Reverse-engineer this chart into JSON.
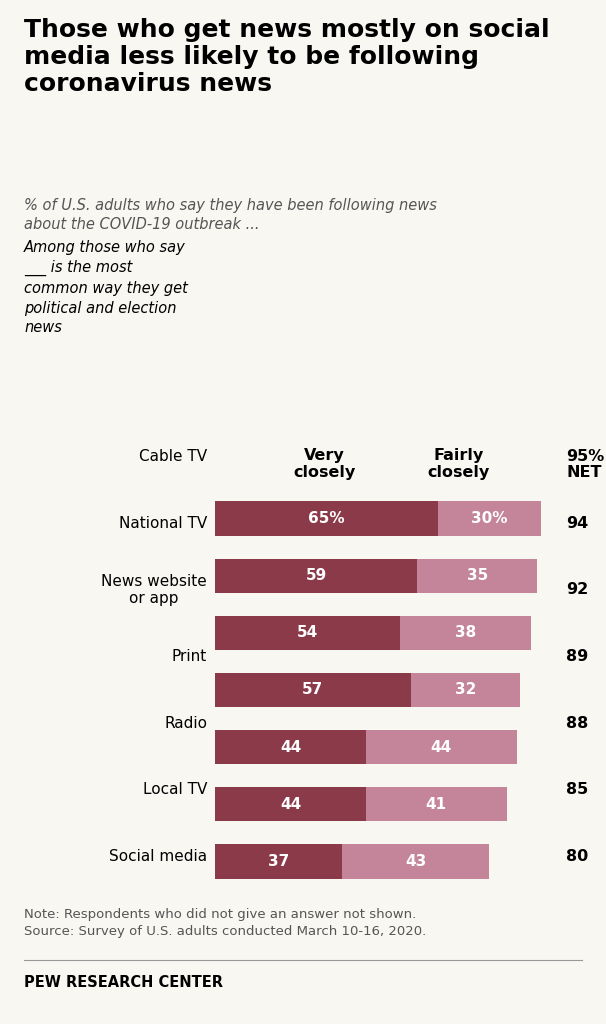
{
  "title": "Those who get news mostly on social\nmedia less likely to be following\ncoronavirus news",
  "subtitle": "% of U.S. adults who say they have been following news\nabout the COVID-19 outbreak ...",
  "note_label_line1": "Among those who say",
  "note_label_line2": "___ is the most",
  "note_label_line3": "common way they get",
  "note_label_line4": "political and election",
  "note_label_line5": "news",
  "categories": [
    "Cable TV",
    "National TV",
    "News website\nor app",
    "Print",
    "Radio",
    "Local TV",
    "Social media"
  ],
  "very_closely": [
    65,
    59,
    54,
    57,
    44,
    44,
    37
  ],
  "fairly_closely": [
    30,
    35,
    38,
    32,
    44,
    41,
    43
  ],
  "net_labels": [
    "95%",
    "94",
    "92",
    "89",
    "88",
    "85",
    "80"
  ],
  "very_closely_labels": [
    "65%",
    "59",
    "54",
    "57",
    "44",
    "44",
    "37"
  ],
  "fairly_closely_labels": [
    "30%",
    "35",
    "38",
    "32",
    "44",
    "41",
    "43"
  ],
  "color_very": "#8B3A4A",
  "color_fairly": "#C4849A",
  "col_header_very": "Very\nclosely",
  "col_header_fairly": "Fairly\nclosely",
  "col_header_net": "NET",
  "note": "Note: Respondents who did not give an answer not shown.\nSource: Survey of U.S. adults conducted March 10-16, 2020.",
  "footer": "PEW RESEARCH CENTER",
  "background_color": "#f9f7f2",
  "text_color_note": "#666666"
}
